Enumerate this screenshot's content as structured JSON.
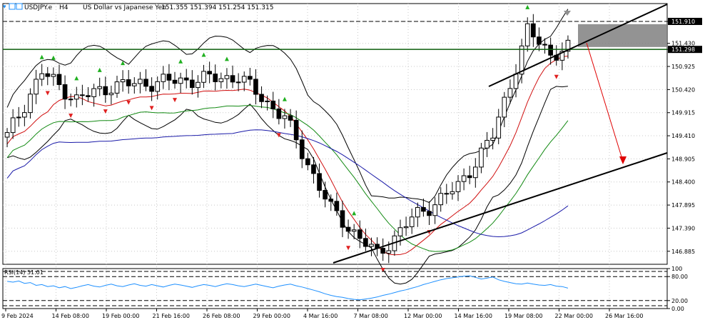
{
  "header": {
    "symbol": "USDJPY.e",
    "timeframe": "H4",
    "description": "US Dollar vs Japanese Yen",
    "ohlc": "151.355 151.394 151.254 151.315"
  },
  "rsi_label": "RSI(14) 51.01",
  "colors": {
    "background": "#ffffff",
    "grid": "#000000",
    "candle": "#000000",
    "ma_red": "#d01010",
    "ma_green": "#138a13",
    "ma_blue": "#1a1aa8",
    "bands": "#000000",
    "rsi": "#1e90ff",
    "horizontal_level": "#0b5e0b",
    "trendline": "#000000",
    "projection_arrow": "#e00000",
    "zone": "#808080",
    "up_arrow": "#20b020",
    "down_arrow": "#e02020"
  },
  "chart_data": {
    "type": "candlestick",
    "price_axis": {
      "ticks": [
        "151.910",
        "151.430",
        "151.298",
        "150.925",
        "150.420",
        "149.915",
        "149.410",
        "148.905",
        "148.400",
        "147.895",
        "147.390",
        "146.885"
      ],
      "range": [
        146.6,
        152.3
      ]
    },
    "time_axis": {
      "labels": [
        "9 Feb 2024",
        "14 Feb 08:00",
        "19 Feb 00:00",
        "21 Feb 16:00",
        "26 Feb 08:00",
        "29 Feb 00:00",
        "4 Mar 16:00",
        "7 Mar 08:00",
        "12 Mar 00:00",
        "14 Mar 16:00",
        "19 Mar 08:00",
        "22 Mar 00:00",
        "26 Mar 16:00"
      ]
    },
    "current_price": 151.315,
    "horizontal_levels": [
      151.91,
      151.298
    ],
    "resistance_zone": [
      151.35,
      151.85
    ],
    "rsi_axis": {
      "ticks": [
        "100",
        "80.00",
        "20.00",
        "0.00"
      ],
      "range": [
        0,
        100
      ],
      "levels": [
        80,
        20
      ]
    },
    "rsi_values": [
      68,
      66,
      69,
      63,
      65,
      58,
      60,
      55,
      57,
      52,
      55,
      50,
      53,
      57,
      60,
      56,
      54,
      58,
      61,
      57,
      55,
      59,
      62,
      58,
      56,
      60,
      57,
      54,
      58,
      61,
      59,
      56,
      53,
      57,
      60,
      58,
      55,
      59,
      62,
      60,
      57,
      55,
      58,
      61,
      58,
      55,
      52,
      56,
      59,
      61,
      57,
      54,
      50,
      46,
      42,
      37,
      33,
      30,
      28,
      25,
      23,
      22,
      24,
      26,
      29,
      33,
      36,
      40,
      44,
      47,
      51,
      55,
      60,
      64,
      68,
      72,
      75,
      77,
      79,
      81,
      82,
      78,
      74,
      76,
      79,
      72,
      68,
      65,
      62,
      61,
      64,
      61,
      59,
      58,
      60,
      56,
      55,
      51
    ]
  }
}
